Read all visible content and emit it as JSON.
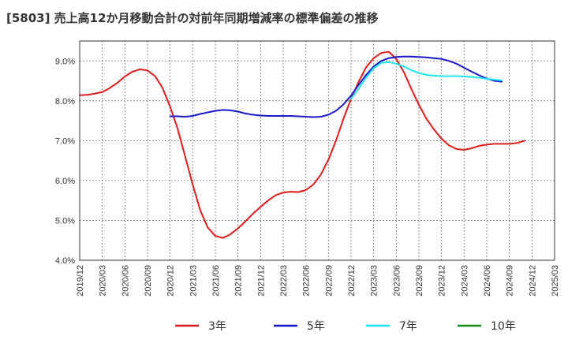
{
  "chart_data": {
    "type": "line",
    "title": "[5803]  売上高12か月移動合計の対前年同期増減率の標準偏差の推移",
    "xlabel": "",
    "ylabel": "",
    "ylim": [
      4.0,
      9.5
    ],
    "y_ticks": [
      4.0,
      5.0,
      6.0,
      7.0,
      8.0,
      9.0
    ],
    "y_tick_labels": [
      "4.0%",
      "5.0%",
      "6.0%",
      "7.0%",
      "8.0%",
      "9.0%"
    ],
    "x_range": [
      "2019-12",
      "2025-03"
    ],
    "x_tick_labels": [
      "2019/12",
      "2020/03",
      "2020/06",
      "2020/09",
      "2020/12",
      "2021/03",
      "2021/06",
      "2021/09",
      "2021/12",
      "2022/03",
      "2022/06",
      "2022/09",
      "2022/12",
      "2023/03",
      "2023/06",
      "2023/09",
      "2023/12",
      "2024/03",
      "2024/06",
      "2024/09",
      "2024/12",
      "2025/03"
    ],
    "grid": true,
    "legend_position": "bottom",
    "series": [
      {
        "name": "3年",
        "color": "#dd1c1c",
        "points": [
          [
            "2019-12",
            8.14
          ],
          [
            "2020-01",
            8.15
          ],
          [
            "2020-02",
            8.18
          ],
          [
            "2020-03",
            8.22
          ],
          [
            "2020-04",
            8.32
          ],
          [
            "2020-05",
            8.45
          ],
          [
            "2020-06",
            8.61
          ],
          [
            "2020-07",
            8.73
          ],
          [
            "2020-08",
            8.79
          ],
          [
            "2020-09",
            8.76
          ],
          [
            "2020-10",
            8.62
          ],
          [
            "2020-11",
            8.32
          ],
          [
            "2020-12",
            7.85
          ],
          [
            "2021-01",
            7.3
          ],
          [
            "2021-02",
            6.6
          ],
          [
            "2021-03",
            5.9
          ],
          [
            "2021-04",
            5.25
          ],
          [
            "2021-05",
            4.82
          ],
          [
            "2021-06",
            4.61
          ],
          [
            "2021-07",
            4.56
          ],
          [
            "2021-08",
            4.65
          ],
          [
            "2021-09",
            4.8
          ],
          [
            "2021-10",
            4.98
          ],
          [
            "2021-11",
            5.17
          ],
          [
            "2021-12",
            5.34
          ],
          [
            "2022-01",
            5.5
          ],
          [
            "2022-02",
            5.63
          ],
          [
            "2022-03",
            5.7
          ],
          [
            "2022-04",
            5.72
          ],
          [
            "2022-05",
            5.71
          ],
          [
            "2022-06",
            5.76
          ],
          [
            "2022-07",
            5.9
          ],
          [
            "2022-08",
            6.15
          ],
          [
            "2022-09",
            6.52
          ],
          [
            "2022-10",
            7.0
          ],
          [
            "2022-11",
            7.55
          ],
          [
            "2022-12",
            8.05
          ],
          [
            "2023-01",
            8.48
          ],
          [
            "2023-02",
            8.84
          ],
          [
            "2023-03",
            9.07
          ],
          [
            "2023-04",
            9.2
          ],
          [
            "2023-05",
            9.23
          ],
          [
            "2023-06",
            9.05
          ],
          [
            "2023-07",
            8.72
          ],
          [
            "2023-08",
            8.3
          ],
          [
            "2023-09",
            7.9
          ],
          [
            "2023-10",
            7.55
          ],
          [
            "2023-11",
            7.28
          ],
          [
            "2023-12",
            7.05
          ],
          [
            "2024-01",
            6.88
          ],
          [
            "2024-02",
            6.79
          ],
          [
            "2024-03",
            6.77
          ],
          [
            "2024-04",
            6.81
          ],
          [
            "2024-05",
            6.87
          ],
          [
            "2024-06",
            6.9
          ],
          [
            "2024-07",
            6.92
          ],
          [
            "2024-08",
            6.92
          ],
          [
            "2024-09",
            6.92
          ],
          [
            "2024-10",
            6.94
          ],
          [
            "2024-11",
            7.0
          ]
        ]
      },
      {
        "name": "5年",
        "color": "#1a1acc",
        "points": [
          [
            "2020-12",
            7.61
          ],
          [
            "2021-01",
            7.61
          ],
          [
            "2021-02",
            7.6
          ],
          [
            "2021-03",
            7.62
          ],
          [
            "2021-04",
            7.67
          ],
          [
            "2021-05",
            7.71
          ],
          [
            "2021-06",
            7.75
          ],
          [
            "2021-07",
            7.77
          ],
          [
            "2021-08",
            7.76
          ],
          [
            "2021-09",
            7.73
          ],
          [
            "2021-10",
            7.68
          ],
          [
            "2021-11",
            7.65
          ],
          [
            "2021-12",
            7.63
          ],
          [
            "2022-01",
            7.62
          ],
          [
            "2022-02",
            7.62
          ],
          [
            "2022-03",
            7.62
          ],
          [
            "2022-04",
            7.62
          ],
          [
            "2022-05",
            7.61
          ],
          [
            "2022-06",
            7.6
          ],
          [
            "2022-07",
            7.59
          ],
          [
            "2022-08",
            7.6
          ],
          [
            "2022-09",
            7.65
          ],
          [
            "2022-10",
            7.75
          ],
          [
            "2022-11",
            7.91
          ],
          [
            "2022-12",
            8.13
          ],
          [
            "2023-01",
            8.4
          ],
          [
            "2023-02",
            8.65
          ],
          [
            "2023-03",
            8.86
          ],
          [
            "2023-04",
            9.0
          ],
          [
            "2023-05",
            9.07
          ],
          [
            "2023-06",
            9.1
          ],
          [
            "2023-07",
            9.11
          ],
          [
            "2023-08",
            9.11
          ],
          [
            "2023-09",
            9.1
          ],
          [
            "2023-10",
            9.09
          ],
          [
            "2023-11",
            9.07
          ],
          [
            "2023-12",
            9.05
          ],
          [
            "2024-01",
            9.0
          ],
          [
            "2024-02",
            8.93
          ],
          [
            "2024-03",
            8.83
          ],
          [
            "2024-04",
            8.73
          ],
          [
            "2024-05",
            8.64
          ],
          [
            "2024-06",
            8.56
          ],
          [
            "2024-07",
            8.5
          ],
          [
            "2024-08",
            8.48
          ]
        ]
      },
      {
        "name": "7年",
        "color": "#1ee6ee",
        "points": [
          [
            "2022-12",
            8.05
          ],
          [
            "2023-01",
            8.3
          ],
          [
            "2023-02",
            8.58
          ],
          [
            "2023-03",
            8.82
          ],
          [
            "2023-04",
            8.95
          ],
          [
            "2023-05",
            8.97
          ],
          [
            "2023-06",
            8.93
          ],
          [
            "2023-07",
            8.86
          ],
          [
            "2023-08",
            8.77
          ],
          [
            "2023-09",
            8.7
          ],
          [
            "2023-10",
            8.65
          ],
          [
            "2023-11",
            8.63
          ],
          [
            "2023-12",
            8.62
          ],
          [
            "2024-01",
            8.62
          ],
          [
            "2024-02",
            8.62
          ],
          [
            "2024-03",
            8.61
          ],
          [
            "2024-04",
            8.6
          ],
          [
            "2024-05",
            8.58
          ],
          [
            "2024-06",
            8.55
          ],
          [
            "2024-07",
            8.53
          ],
          [
            "2024-08",
            8.51
          ]
        ]
      },
      {
        "name": "10年",
        "color": "#1a8a1a",
        "points": []
      }
    ]
  }
}
